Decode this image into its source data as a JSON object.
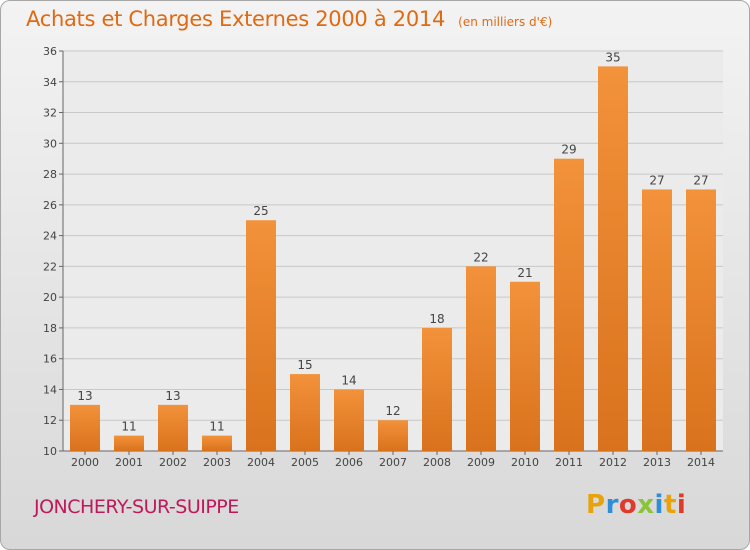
{
  "header": {
    "title": "Achats et Charges Externes 2000 à 2014",
    "unit": "(en milliers d'€)"
  },
  "footer": {
    "commune": "JONCHERY-SUR-SUIPPE",
    "logo": "Proxiti",
    "logo_colors": [
      "#e8a20a",
      "#2f8fd6",
      "#e03a2a",
      "#8ac43c",
      "#2f8fd6",
      "#e8a20a",
      "#e03a2a"
    ]
  },
  "chart_data": {
    "type": "bar",
    "title": "Achats et Charges Externes 2000 à 2014",
    "subtitle": "(en milliers d'€)",
    "categories": [
      "2000",
      "2001",
      "2002",
      "2003",
      "2004",
      "2005",
      "2006",
      "2007",
      "2008",
      "2009",
      "2010",
      "2011",
      "2012",
      "2013",
      "2014"
    ],
    "values": [
      13,
      11,
      13,
      11,
      25,
      15,
      14,
      12,
      18,
      22,
      21,
      29,
      35,
      27,
      27
    ],
    "ylim": [
      10,
      36
    ],
    "yticks": [
      10,
      12,
      14,
      16,
      18,
      20,
      22,
      24,
      26,
      28,
      30,
      32,
      34,
      36
    ],
    "grid": true,
    "data_labels": true,
    "bar_color": "#f2923a",
    "bar_color_dark": "#d9721c"
  }
}
